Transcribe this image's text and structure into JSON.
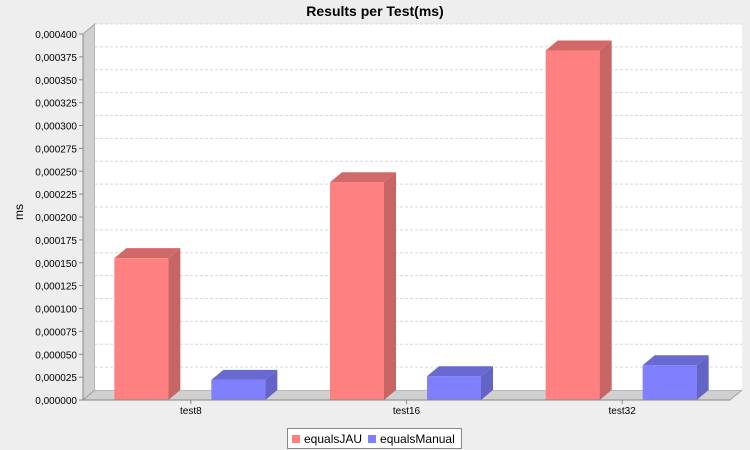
{
  "chart_data": {
    "type": "bar",
    "title": "Results per Test(ms)",
    "xlabel": "",
    "ylabel": "ms",
    "categories": [
      "test8",
      "test16",
      "test32"
    ],
    "series": [
      {
        "name": "equalsJAU",
        "values": [
          0.000155,
          0.000238,
          0.000382
        ],
        "color": "#ff8080"
      },
      {
        "name": "equalsManual",
        "values": [
          2.2e-05,
          2.6e-05,
          3.8e-05
        ],
        "color": "#8080ff"
      }
    ],
    "ylim": [
      0,
      0.0004
    ],
    "yticks": [
      "0,000000",
      "0,000025",
      "0,000050",
      "0,000075",
      "0,000100",
      "0,000125",
      "0,000150",
      "0,000175",
      "0,000200",
      "0,000225",
      "0,000250",
      "0,000275",
      "0,000300",
      "0,000325",
      "0,000350",
      "0,000375",
      "0,000400"
    ],
    "grid": true,
    "legend_position": "bottom"
  }
}
